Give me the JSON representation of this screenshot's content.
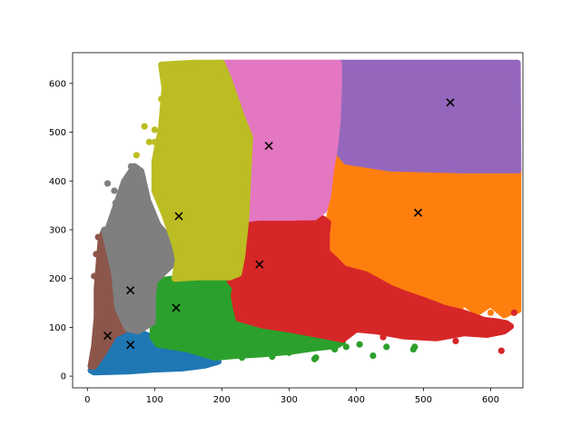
{
  "chart_data": {
    "type": "scatter",
    "title": "",
    "xlabel": "",
    "ylabel": "",
    "xlim": [
      -22,
      648
    ],
    "ylim": [
      -24,
      663
    ],
    "x_ticks": [
      0,
      100,
      200,
      300,
      400,
      500,
      600
    ],
    "y_ticks": [
      0,
      100,
      200,
      300,
      400,
      500,
      600
    ],
    "x_tick_labels": [
      "0",
      "100",
      "200",
      "300",
      "400",
      "500",
      "600"
    ],
    "y_tick_labels": [
      "0",
      "100",
      "200",
      "300",
      "400",
      "500",
      "600"
    ],
    "grid": false,
    "legend": "none",
    "clusters": [
      {
        "color": "#1f77b4",
        "center": [
          64,
          64
        ],
        "outline": [
          [
            5,
            12
          ],
          [
            10,
            8
          ],
          [
            60,
            10
          ],
          [
            100,
            14
          ],
          [
            140,
            16
          ],
          [
            175,
            22
          ],
          [
            195,
            30
          ],
          [
            190,
            38
          ],
          [
            150,
            55
          ],
          [
            105,
            65
          ],
          [
            95,
            80
          ],
          [
            75,
            92
          ],
          [
            60,
            96
          ],
          [
            40,
            85
          ],
          [
            25,
            50
          ],
          [
            10,
            20
          ]
        ],
        "outliers": [
          [
            175,
            28
          ],
          [
            190,
            35
          ],
          [
            140,
            20
          ],
          [
            160,
            25
          ]
        ]
      },
      {
        "color": "#ff7f0e",
        "center": [
          492,
          335
        ],
        "outline": [
          [
            368,
            468
          ],
          [
            385,
            440
          ],
          [
            450,
            426
          ],
          [
            560,
            422
          ],
          [
            640,
            422
          ],
          [
            641,
            422
          ],
          [
            641,
            135
          ],
          [
            632,
            133
          ],
          [
            620,
            125
          ],
          [
            600,
            148
          ],
          [
            580,
            130
          ],
          [
            560,
            150
          ],
          [
            540,
            128
          ],
          [
            520,
            148
          ],
          [
            500,
            135
          ],
          [
            475,
            160
          ],
          [
            452,
            180
          ],
          [
            420,
            198
          ],
          [
            390,
            208
          ],
          [
            370,
            230
          ],
          [
            356,
            255
          ],
          [
            356,
            290
          ],
          [
            360,
            325
          ],
          [
            362,
            340
          ],
          [
            358,
            370
          ],
          [
            362,
            420
          ]
        ],
        "outliers": [
          [
            555,
            140
          ],
          [
            575,
            155
          ],
          [
            510,
            142
          ],
          [
            600,
            130
          ]
        ]
      },
      {
        "color": "#2ca02c",
        "center": [
          132,
          140
        ],
        "outline": [
          [
            100,
            195
          ],
          [
            130,
            200
          ],
          [
            165,
            203
          ],
          [
            200,
            205
          ],
          [
            205,
            200
          ],
          [
            212,
            185
          ],
          [
            218,
            165
          ],
          [
            222,
            135
          ],
          [
            225,
            118
          ],
          [
            245,
            108
          ],
          [
            280,
            102
          ],
          [
            320,
            94
          ],
          [
            350,
            83
          ],
          [
            370,
            75
          ],
          [
            380,
            70
          ],
          [
            370,
            62
          ],
          [
            340,
            58
          ],
          [
            300,
            50
          ],
          [
            260,
            45
          ],
          [
            220,
            42
          ],
          [
            190,
            38
          ],
          [
            150,
            55
          ],
          [
            105,
            65
          ],
          [
            97,
            80
          ]
        ],
        "outliers": [
          [
            338,
            35
          ],
          [
            425,
            42
          ],
          [
            485,
            55
          ],
          [
            487,
            60
          ],
          [
            368,
            55
          ],
          [
            385,
            60
          ],
          [
            405,
            65
          ],
          [
            445,
            60
          ],
          [
            340,
            38
          ],
          [
            300,
            48
          ],
          [
            275,
            40
          ],
          [
            230,
            38
          ]
        ]
      },
      {
        "color": "#d62728",
        "center": [
          256,
          229
        ],
        "outline": [
          [
            238,
            322
          ],
          [
            255,
            325
          ],
          [
            300,
            325
          ],
          [
            350,
            323
          ],
          [
            358,
            315
          ],
          [
            356,
            290
          ],
          [
            356,
            255
          ],
          [
            368,
            240
          ],
          [
            382,
            220
          ],
          [
            415,
            208
          ],
          [
            452,
            180
          ],
          [
            470,
            170
          ],
          [
            500,
            156
          ],
          [
            530,
            140
          ],
          [
            560,
            130
          ],
          [
            590,
            115
          ],
          [
            610,
            112
          ],
          [
            624,
            108
          ],
          [
            630,
            102
          ],
          [
            620,
            92
          ],
          [
            595,
            85
          ],
          [
            560,
            88
          ],
          [
            520,
            78
          ],
          [
            470,
            82
          ],
          [
            430,
            92
          ],
          [
            400,
            96
          ],
          [
            380,
            75
          ],
          [
            350,
            83
          ],
          [
            300,
            96
          ],
          [
            260,
            104
          ],
          [
            225,
            118
          ],
          [
            222,
            135
          ],
          [
            218,
            165
          ],
          [
            220,
            182
          ],
          [
            212,
            195
          ],
          [
            225,
            210
          ],
          [
            230,
            245
          ],
          [
            236,
            285
          ]
        ],
        "outliers": [
          [
            616,
            52
          ],
          [
            625,
            97
          ],
          [
            555,
            100
          ],
          [
            598,
            105
          ],
          [
            635,
            130
          ],
          [
            548,
            72
          ],
          [
            488,
            98
          ],
          [
            465,
            95
          ],
          [
            440,
            80
          ]
        ]
      },
      {
        "color": "#9467bd",
        "center": [
          540,
          561
        ],
        "outline": [
          [
            374,
            642
          ],
          [
            640,
            642
          ],
          [
            641,
            422
          ],
          [
            560,
            422
          ],
          [
            450,
            426
          ],
          [
            385,
            440
          ],
          [
            368,
            468
          ],
          [
            372,
            520
          ],
          [
            374,
            590
          ]
        ],
        "outliers": []
      },
      {
        "color": "#8c564b",
        "center": [
          30,
          83
        ],
        "outline": [
          [
            5,
            20
          ],
          [
            10,
            60
          ],
          [
            14,
            120
          ],
          [
            14,
            180
          ],
          [
            17,
            230
          ],
          [
            20,
            280
          ],
          [
            25,
            300
          ],
          [
            40,
            210
          ],
          [
            45,
            140
          ],
          [
            55,
            110
          ],
          [
            60,
            97
          ],
          [
            40,
            85
          ],
          [
            25,
            50
          ],
          [
            10,
            20
          ]
        ],
        "outliers": [
          [
            16,
            285
          ],
          [
            13,
            250
          ],
          [
            10,
            205
          ]
        ]
      },
      {
        "color": "#e377c2",
        "center": [
          270,
          472
        ],
        "outline": [
          [
            200,
            642
          ],
          [
            374,
            642
          ],
          [
            374,
            590
          ],
          [
            372,
            520
          ],
          [
            368,
            468
          ],
          [
            362,
            420
          ],
          [
            358,
            370
          ],
          [
            352,
            340
          ],
          [
            338,
            326
          ],
          [
            300,
            325
          ],
          [
            255,
            325
          ],
          [
            236,
            322
          ],
          [
            238,
            380
          ],
          [
            240,
            440
          ],
          [
            242,
            490
          ],
          [
            230,
            530
          ],
          [
            210,
            610
          ],
          [
            200,
            642
          ]
        ],
        "outliers": []
      },
      {
        "color": "#7f7f7f",
        "center": [
          64,
          176
        ],
        "outline": [
          [
            30,
            300
          ],
          [
            45,
            360
          ],
          [
            55,
            400
          ],
          [
            70,
            430
          ],
          [
            80,
            420
          ],
          [
            90,
            360
          ],
          [
            105,
            310
          ],
          [
            130,
            270
          ],
          [
            135,
            240
          ],
          [
            100,
            195
          ],
          [
            97,
            160
          ],
          [
            97,
            110
          ],
          [
            75,
            92
          ],
          [
            60,
            97
          ],
          [
            55,
            110
          ],
          [
            45,
            140
          ],
          [
            40,
            210
          ],
          [
            25,
            300
          ]
        ],
        "outliers": [
          [
            30,
            395
          ],
          [
            40,
            380
          ],
          [
            42,
            355
          ],
          [
            55,
            345
          ],
          [
            60,
            400
          ],
          [
            65,
            430
          ],
          [
            50,
            322
          ],
          [
            38,
            330
          ]
        ]
      },
      {
        "color": "#bcbd22",
        "center": [
          136,
          328
        ],
        "outline": [
          [
            110,
            638
          ],
          [
            160,
            642
          ],
          [
            200,
            642
          ],
          [
            210,
            610
          ],
          [
            230,
            530
          ],
          [
            242,
            490
          ],
          [
            240,
            440
          ],
          [
            238,
            380
          ],
          [
            236,
            322
          ],
          [
            230,
            245
          ],
          [
            225,
            210
          ],
          [
            212,
            203
          ],
          [
            165,
            203
          ],
          [
            130,
            200
          ],
          [
            135,
            240
          ],
          [
            130,
            270
          ],
          [
            115,
            330
          ],
          [
            100,
            380
          ],
          [
            100,
            440
          ],
          [
            110,
            510
          ],
          [
            115,
            590
          ]
        ],
        "outliers": [
          [
            118,
            635
          ],
          [
            132,
            630
          ],
          [
            150,
            637
          ],
          [
            85,
            512
          ],
          [
            100,
            505
          ],
          [
            100,
            480
          ],
          [
            92,
            480
          ],
          [
            73,
            453
          ],
          [
            110,
            568
          ],
          [
            118,
            560
          ]
        ]
      }
    ]
  }
}
